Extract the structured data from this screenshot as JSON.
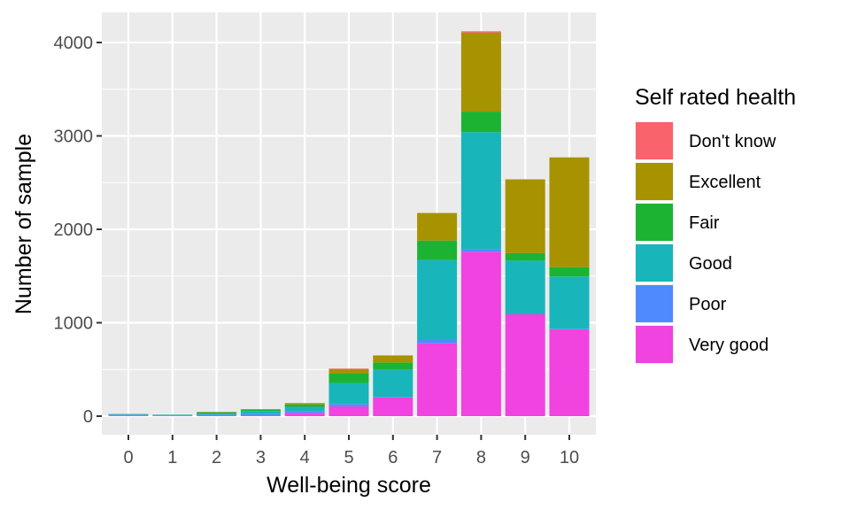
{
  "chart_data": {
    "type": "bar",
    "stacked": true,
    "xlabel": "Well-being score",
    "ylabel": "Number of sample",
    "ylim": [
      0,
      4300
    ],
    "yticks": [
      0,
      1000,
      2000,
      3000,
      4000
    ],
    "grid": true,
    "legend_position": "right",
    "legend_title": "Self rated health",
    "categories": [
      "0",
      "1",
      "2",
      "3",
      "4",
      "5",
      "6",
      "7",
      "8",
      "9",
      "10"
    ],
    "series": [
      {
        "name": "Very good",
        "color": "#F043DF",
        "values": [
          2,
          2,
          5,
          10,
          35,
          105,
          200,
          780,
          1760,
          1090,
          930
        ]
      },
      {
        "name": "Poor",
        "color": "#4F8BFF",
        "values": [
          15,
          10,
          12,
          15,
          20,
          25,
          5,
          40,
          30,
          5,
          5
        ]
      },
      {
        "name": "Good",
        "color": "#18B5BB",
        "values": [
          5,
          3,
          10,
          30,
          45,
          225,
          290,
          850,
          1250,
          570,
          560
        ]
      },
      {
        "name": "Fair",
        "color": "#1CB333",
        "values": [
          2,
          2,
          15,
          15,
          25,
          100,
          80,
          210,
          220,
          80,
          100
        ]
      },
      {
        "name": "Excellent",
        "color": "#A79200",
        "values": [
          0,
          0,
          3,
          5,
          15,
          50,
          75,
          295,
          845,
          790,
          1175
        ]
      },
      {
        "name": "Don't know",
        "color": "#F8636C",
        "values": [
          0,
          0,
          0,
          0,
          0,
          5,
          0,
          0,
          15,
          0,
          0
        ]
      }
    ],
    "legend_order": [
      "Don't know",
      "Excellent",
      "Fair",
      "Good",
      "Poor",
      "Very good"
    ]
  }
}
